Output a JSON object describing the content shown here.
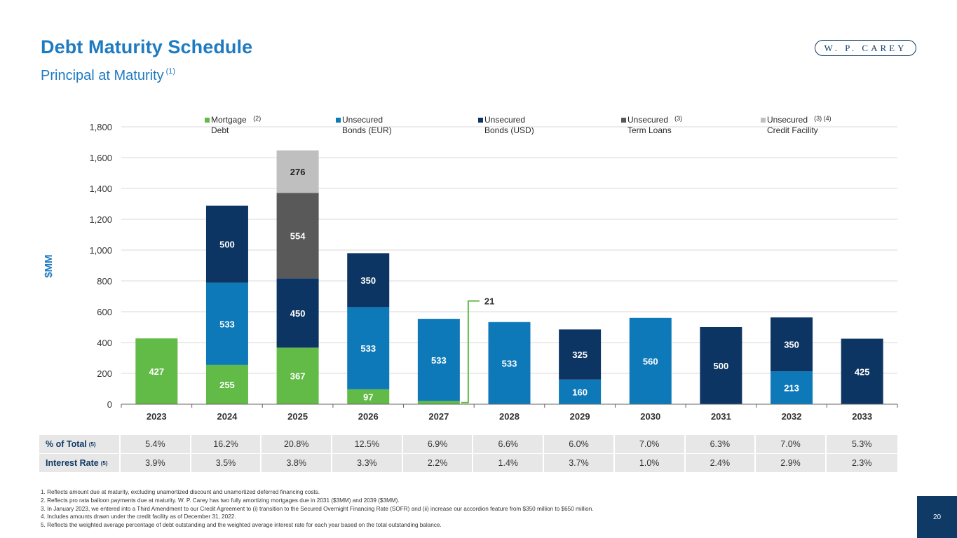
{
  "page": {
    "title": "Debt Maturity Schedule",
    "subtitle": "Principal at Maturity",
    "subtitle_note": "(1)",
    "logo_text": "W. P. CAREY",
    "page_number": "20"
  },
  "chart_data": {
    "type": "bar",
    "stacked": true,
    "ylabel": "$MM",
    "ylim": [
      0,
      1800
    ],
    "yticks": [
      0,
      200,
      400,
      600,
      800,
      1000,
      1200,
      1400,
      1600,
      1800
    ],
    "grid": true,
    "legend_position": "top",
    "categories": [
      "2023",
      "2024",
      "2025",
      "2026",
      "2027",
      "2028",
      "2029",
      "2030",
      "2031",
      "2032",
      "2033"
    ],
    "series": [
      {
        "name": "Mortgage Debt",
        "note": "(2)",
        "color": "#62bb46",
        "values": [
          427,
          255,
          367,
          97,
          21,
          0,
          0,
          0,
          0,
          0,
          0
        ]
      },
      {
        "name": "Unsecured Bonds (EUR)",
        "note": "",
        "color": "#0e79b9",
        "values": [
          0,
          533,
          0,
          533,
          533,
          533,
          160,
          560,
          0,
          213,
          0
        ]
      },
      {
        "name": "Unsecured Bonds (USD)",
        "note": "",
        "color": "#0d3563",
        "values": [
          0,
          500,
          450,
          350,
          0,
          0,
          325,
          0,
          500,
          350,
          425
        ]
      },
      {
        "name": "Unsecured Term Loans",
        "note": "(3)",
        "color": "#595959",
        "values": [
          0,
          0,
          554,
          0,
          0,
          0,
          0,
          0,
          0,
          0,
          0
        ]
      },
      {
        "name": "Unsecured Credit Facility",
        "note": "(3) (4)",
        "color": "#bfbfbf",
        "values": [
          0,
          0,
          276,
          0,
          0,
          0,
          0,
          0,
          0,
          0,
          0
        ]
      }
    ],
    "legend_lines": [
      [
        "Mortgage",
        "Debt"
      ],
      [
        "Unsecured",
        "Bonds (EUR)"
      ],
      [
        "Unsecured",
        "Bonds (USD)"
      ],
      [
        "Unsecured",
        "Term Loans"
      ],
      [
        "Unsecured",
        "Credit Facility"
      ]
    ],
    "annotation": {
      "category": "2027",
      "series": "Mortgage Debt",
      "label": "21"
    }
  },
  "table": {
    "rows": [
      {
        "label": "% of Total",
        "note": "(5)",
        "values": [
          "5.4%",
          "16.2%",
          "20.8%",
          "12.5%",
          "6.9%",
          "6.6%",
          "6.0%",
          "7.0%",
          "6.3%",
          "7.0%",
          "5.3%"
        ]
      },
      {
        "label": "Interest Rate",
        "note": "(5)",
        "values": [
          "3.9%",
          "3.5%",
          "3.8%",
          "3.3%",
          "2.2%",
          "1.4%",
          "3.7%",
          "1.0%",
          "2.4%",
          "2.9%",
          "2.3%"
        ]
      }
    ]
  },
  "footnotes": [
    "1.  Reflects amount due at maturity, excluding unamortized discount and unamortized deferred financing costs.",
    "2.  Reflects pro rata balloon payments due at maturity. W. P. Carey has two fully amortizing mortgages due in 2031 ($3MM) and 2039 ($3MM).",
    "3.  In January 2023, we entered into a Third Amendment to our Credit Agreement to (i) transition to the Secured Overnight Financing Rate (SOFR) and (ii) increase our accordion feature from $350 million to $650 million.",
    "4.  Includes amounts drawn under the credit facility as of December 31, 2022.",
    "5.  Reflects the weighted average percentage of debt outstanding and the weighted average interest rate for each year based on the total outstanding balance."
  ]
}
